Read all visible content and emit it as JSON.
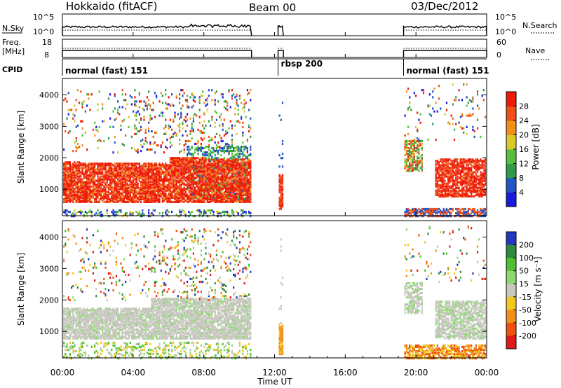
{
  "header": {
    "title": "Hokkaido (fitACF)",
    "beam": "Beam 00",
    "date": "03/Dec/2012"
  },
  "chart_data": {
    "type": "heatmap",
    "x_axis": {
      "label": "Time UT",
      "ticks": [
        "00:00",
        "04:00",
        "08:00",
        "12:00",
        "16:00",
        "20:00",
        "00:00"
      ],
      "range_hours": [
        0,
        24
      ]
    },
    "nsky_panel": {
      "left_label": "N.Sky",
      "right_label": "N.Search",
      "left_ticks": [
        "10^5",
        "10^0"
      ],
      "right_ticks": [
        "10^5",
        "10^0"
      ]
    },
    "freq_panel": {
      "left_label_1": "Freq.",
      "left_label_2": "[MHz]",
      "left_ticks": [
        "18",
        "8"
      ],
      "right_label": "Nave",
      "right_ticks": [
        "60",
        "0"
      ]
    },
    "cpid_panel": {
      "label": "CPID",
      "modes": [
        {
          "name": "normal (fast) 151",
          "start_hour": 0.0,
          "end_hour": 10.7
        },
        {
          "name": "rbsp 200",
          "start_hour": 12.2,
          "end_hour": 12.5
        },
        {
          "name": "normal (fast) 151",
          "start_hour": 19.3,
          "end_hour": 24.0
        }
      ]
    },
    "data_segments_hours": [
      [
        0.0,
        10.7
      ],
      [
        12.2,
        12.5
      ],
      [
        19.3,
        24.0
      ]
    ],
    "power_panel": {
      "ylabel": "Slant Range [km]",
      "yticks": [
        1000,
        2000,
        3000,
        4000
      ],
      "ylim": [
        180,
        4500
      ],
      "colorbar_label": "Power [dB]",
      "colorbar_ticks": [
        "4",
        "8",
        "12",
        "16",
        "20",
        "24",
        "28"
      ],
      "colorbar_range": [
        0,
        30
      ],
      "colors": [
        "#1a1adc",
        "#2255c8",
        "#2f9a48",
        "#55c040",
        "#d8c828",
        "#f09018",
        "#f05018",
        "#ee1a0a"
      ]
    },
    "velocity_panel": {
      "ylabel": "Slant Range [km]",
      "yticks": [
        1000,
        2000,
        3000,
        4000
      ],
      "ylim": [
        180,
        4500
      ],
      "colorbar_label": "Velocity [m s⁻¹]",
      "colorbar_ticks": [
        "200",
        "100",
        "50",
        "15",
        "-15",
        "-50",
        "-100",
        "-200"
      ],
      "colors": [
        "#2238c0",
        "#2f8a40",
        "#4cc030",
        "#8dd870",
        "#c8c8c0",
        "#f0c820",
        "#f09018",
        "#f05010",
        "#e01818"
      ]
    }
  }
}
